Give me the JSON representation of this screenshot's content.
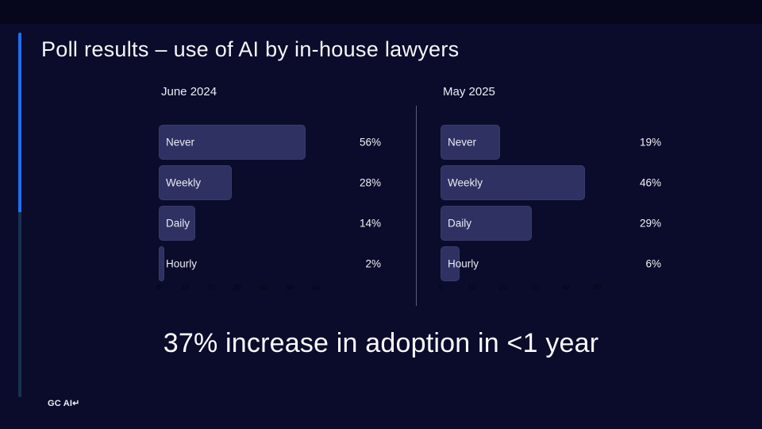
{
  "slide": {
    "title": "Poll results – use of AI by in-house lawyers",
    "headline": "37% increase in adoption in <1 year",
    "logo": "GC AI↵",
    "colors": {
      "background": "#0b0b2b",
      "top_band": "#06061d",
      "bar_fill": "#2e3162",
      "accent_blue": "#1e6ff2",
      "accent_dim_blue": "#16324f",
      "text": "#f5f6f9",
      "axis_tick_text": "#07071a"
    }
  },
  "chart_data": [
    {
      "type": "bar",
      "orientation": "horizontal",
      "title": "June 2024",
      "categories": [
        "Never",
        "Weekly",
        "Daily",
        "Hourly"
      ],
      "values": [
        56,
        28,
        14,
        2
      ],
      "value_labels": [
        "56%",
        "28%",
        "14%",
        "2%"
      ],
      "axis_ticks": [
        0,
        10,
        20,
        30,
        40,
        50,
        60
      ],
      "xlim": [
        0,
        60
      ],
      "grid": false,
      "legend": "none"
    },
    {
      "type": "bar",
      "orientation": "horizontal",
      "title": "May 2025",
      "categories": [
        "Never",
        "Weekly",
        "Daily",
        "Hourly"
      ],
      "values": [
        19,
        46,
        29,
        6
      ],
      "value_labels": [
        "19%",
        "46%",
        "29%",
        "6%"
      ],
      "axis_ticks": [
        0,
        10,
        20,
        30,
        40,
        50
      ],
      "xlim": [
        0,
        50
      ],
      "grid": false,
      "legend": "none"
    }
  ]
}
